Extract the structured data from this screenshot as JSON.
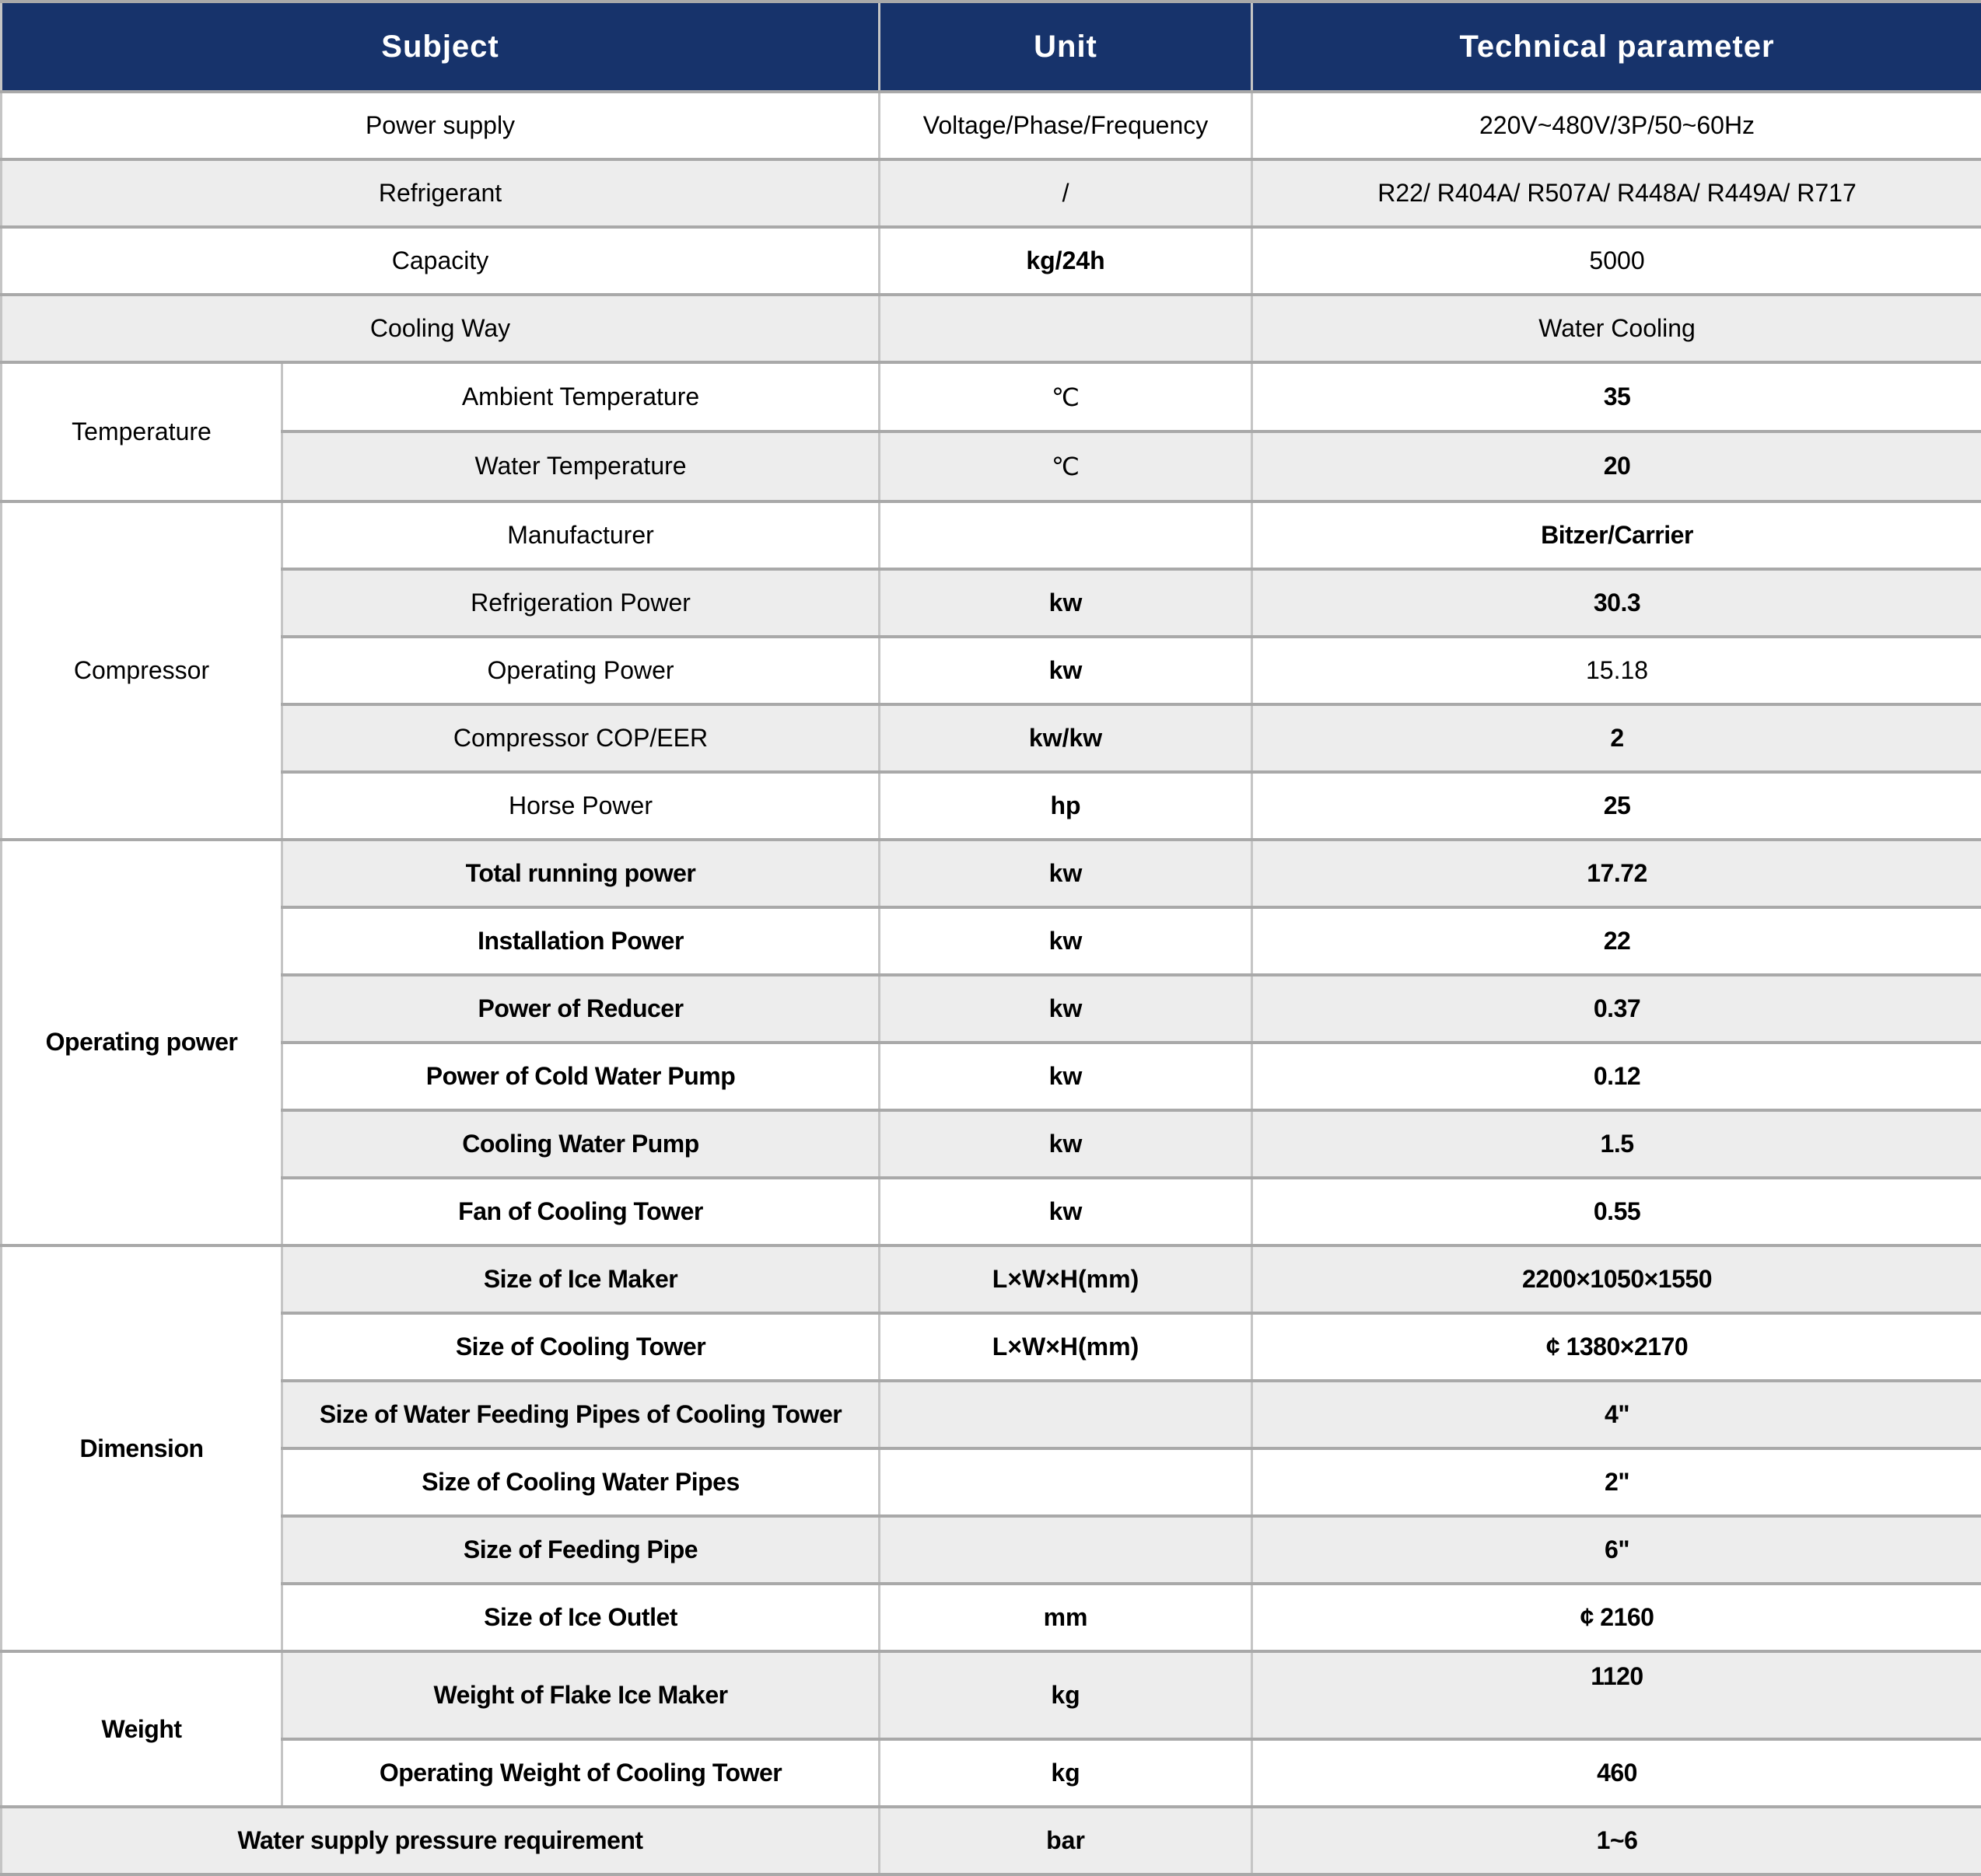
{
  "colors": {
    "header_bg": "#17336b",
    "header_text": "#ffffff",
    "row_bg": "#ffffff",
    "row_alt_bg": "#ededed",
    "grid_h": "#a9a9a9",
    "grid_v": "#c5c5c5",
    "text": "#000000"
  },
  "header": {
    "subject": "Subject",
    "unit": "Unit",
    "parameter": "Technical parameter"
  },
  "rows": [
    {
      "span2": true,
      "label": "Power supply",
      "unit": "Voltage/Phase/Frequency",
      "value": "220V~480V/3P/50~60Hz",
      "label_bold": false,
      "unit_bold": false,
      "value_bold": false
    },
    {
      "span2": true,
      "label": "Refrigerant",
      "unit": "/",
      "value": "R22/ R404A/ R507A/ R448A/ R449A/ R717",
      "label_bold": false,
      "unit_bold": false,
      "value_bold": false
    },
    {
      "span2": true,
      "label": "Capacity",
      "unit": "kg/24h",
      "value": "5000",
      "label_bold": false,
      "unit_bold": true,
      "value_bold": false
    },
    {
      "span2": true,
      "label": "Cooling Way",
      "unit": "",
      "value": "Water Cooling",
      "label_bold": false,
      "unit_bold": false,
      "value_bold": false
    },
    {
      "group": {
        "label": "Temperature",
        "rowspan": 2,
        "bold": false
      },
      "label": "Ambient Temperature",
      "unit": "℃",
      "value": "35",
      "label_bold": false,
      "unit_bold": false,
      "value_bold": true
    },
    {
      "label": "Water Temperature",
      "unit": "℃",
      "value": "20",
      "label_bold": false,
      "unit_bold": false,
      "value_bold": true
    },
    {
      "group": {
        "label": "Compressor",
        "rowspan": 5,
        "bold": false
      },
      "label": "Manufacturer",
      "unit": "",
      "value": "Bitzer/Carrier",
      "label_bold": false,
      "unit_bold": false,
      "value_bold": true
    },
    {
      "label": "Refrigeration Power",
      "unit": "kw",
      "value": "30.3",
      "label_bold": false,
      "unit_bold": true,
      "value_bold": true
    },
    {
      "label": "Operating Power",
      "unit": "kw",
      "value": "15.18",
      "label_bold": false,
      "unit_bold": true,
      "value_bold": false
    },
    {
      "label": "Compressor COP/EER",
      "unit": "kw/kw",
      "value": "2",
      "label_bold": false,
      "unit_bold": true,
      "value_bold": true
    },
    {
      "label": "Horse Power",
      "unit": "hp",
      "value": "25",
      "label_bold": false,
      "unit_bold": true,
      "value_bold": true
    },
    {
      "group": {
        "label": "Operating power",
        "rowspan": 6,
        "bold": true
      },
      "label": "Total running power",
      "unit": "kw",
      "value": "17.72",
      "label_bold": true,
      "unit_bold": true,
      "value_bold": true
    },
    {
      "label": "Installation Power",
      "unit": "kw",
      "value": "22",
      "label_bold": true,
      "unit_bold": true,
      "value_bold": true
    },
    {
      "label": "Power of Reducer",
      "unit": "kw",
      "value": "0.37",
      "label_bold": true,
      "unit_bold": true,
      "value_bold": true
    },
    {
      "label": "Power of Cold Water Pump",
      "unit": "kw",
      "value": "0.12",
      "label_bold": true,
      "unit_bold": true,
      "value_bold": true
    },
    {
      "label": "Cooling Water Pump",
      "unit": "kw",
      "value": "1.5",
      "label_bold": true,
      "unit_bold": true,
      "value_bold": true
    },
    {
      "label": "Fan of Cooling Tower",
      "unit": "kw",
      "value": "0.55",
      "label_bold": true,
      "unit_bold": true,
      "value_bold": true
    },
    {
      "group": {
        "label": "Dimension",
        "rowspan": 6,
        "bold": true
      },
      "label": "Size of Ice Maker",
      "unit": "L×W×H(mm)",
      "value": "2200×1050×1550",
      "label_bold": true,
      "unit_bold": true,
      "value_bold": true
    },
    {
      "label": "Size of Cooling Tower",
      "unit": "L×W×H(mm)",
      "value": "¢ 1380×2170",
      "label_bold": true,
      "unit_bold": true,
      "value_bold": true
    },
    {
      "label": "Size of Water Feeding Pipes of Cooling Tower",
      "unit": "",
      "value": "4\"",
      "label_bold": true,
      "unit_bold": false,
      "value_bold": true
    },
    {
      "label": "Size of Cooling Water Pipes",
      "unit": "",
      "value": "2\"",
      "label_bold": true,
      "unit_bold": false,
      "value_bold": true
    },
    {
      "label": "Size of Feeding Pipe",
      "unit": "",
      "value": "6\"",
      "label_bold": true,
      "unit_bold": false,
      "value_bold": true
    },
    {
      "label": "Size of Ice Outlet",
      "unit": "mm",
      "value": "¢ 2160",
      "label_bold": true,
      "unit_bold": true,
      "value_bold": true
    },
    {
      "group": {
        "label": "Weight",
        "rowspan": 2,
        "bold": true
      },
      "label": "Weight of Flake Ice Maker",
      "unit": "kg",
      "value": "1120",
      "label_bold": true,
      "unit_bold": true,
      "value_bold": true,
      "value_top": true
    },
    {
      "label": "Operating Weight of Cooling Tower",
      "unit": "kg",
      "value": "460",
      "label_bold": true,
      "unit_bold": true,
      "value_bold": true
    },
    {
      "span2": true,
      "label": "Water supply pressure requirement",
      "unit": "bar",
      "value": "1~6",
      "label_bold": true,
      "unit_bold": true,
      "value_bold": true
    }
  ]
}
